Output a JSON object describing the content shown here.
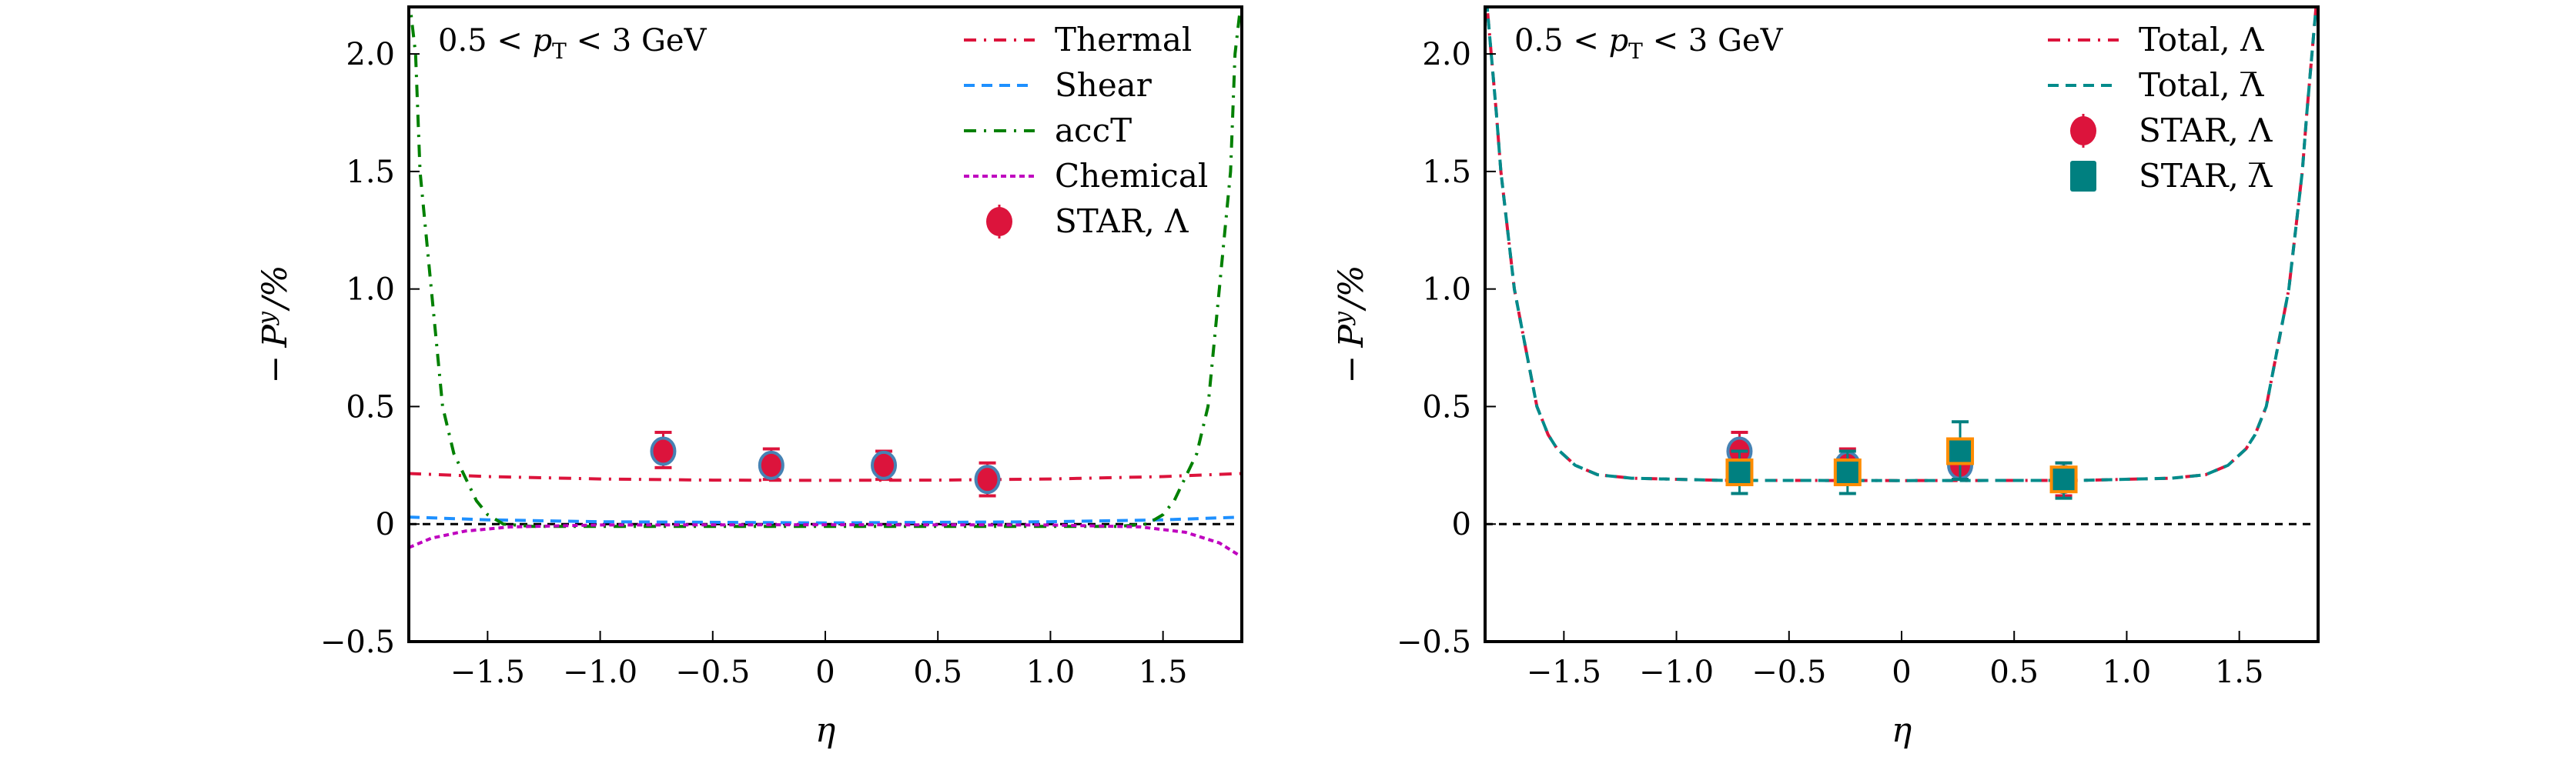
{
  "chart_data": [
    {
      "type": "line",
      "panel": "left",
      "title": "",
      "annotation": "0.5 < pT < 3 GeV",
      "annotation_parts": {
        "pre": "0.5 < ",
        "var": "p",
        "sub": "T",
        "post": " < 3 GeV"
      },
      "xlabel": "η",
      "ylabel": "− P^y / %",
      "ylabel_parts": {
        "minus": "−",
        "var": "P",
        "sup": "y",
        "post": "/%"
      },
      "xlim": [
        -1.85,
        1.85
      ],
      "ylim": [
        -0.5,
        2.2
      ],
      "xticks": [
        -1.5,
        -1.0,
        -0.5,
        0,
        0.5,
        1.0,
        1.5
      ],
      "xtick_labels": [
        "−1.5",
        "−1.0",
        "−0.5",
        "0",
        "0.5",
        "1.0",
        "1.5"
      ],
      "yticks": [
        -0.5,
        0,
        0.5,
        1.0,
        1.5,
        2.0
      ],
      "ytick_labels": [
        "−0.5",
        "0",
        "0.5",
        "1.0",
        "1.5",
        "2.0"
      ],
      "grid": false,
      "legend_position": "top-right",
      "reference_line": {
        "y": 0,
        "color": "#000000",
        "style": "dashed"
      },
      "series": [
        {
          "name": "Thermal",
          "color": "#DC143C",
          "style": "dashdot",
          "x": [
            -1.85,
            -1.5,
            -1.0,
            -0.5,
            0,
            0.5,
            1.0,
            1.5,
            1.85
          ],
          "y": [
            0.215,
            0.202,
            0.192,
            0.187,
            0.186,
            0.187,
            0.192,
            0.202,
            0.215
          ]
        },
        {
          "name": "Shear",
          "color": "#1E90FF",
          "style": "dashed",
          "x": [
            -1.85,
            -1.5,
            -1.0,
            0,
            1.0,
            1.5,
            1.85
          ],
          "y": [
            0.03,
            0.018,
            0.01,
            0.005,
            0.01,
            0.018,
            0.03
          ]
        },
        {
          "name": "accT",
          "color": "#008000",
          "style": "dashdot",
          "x": [
            -1.85,
            -1.82,
            -1.8,
            -1.75,
            -1.7,
            -1.65,
            -1.6,
            -1.55,
            -1.5,
            -1.43,
            -1.3,
            0,
            1.3,
            1.43,
            1.5,
            1.55,
            1.6,
            1.65,
            1.7,
            1.75,
            1.8,
            1.82,
            1.85
          ],
          "y": [
            2.25,
            2.0,
            1.5,
            1.0,
            0.5,
            0.3,
            0.2,
            0.1,
            0.04,
            0.0,
            -0.01,
            -0.01,
            -0.01,
            0.0,
            0.04,
            0.1,
            0.2,
            0.3,
            0.5,
            1.0,
            1.5,
            2.0,
            2.25
          ]
        },
        {
          "name": "Chemical",
          "color": "#BF00BF",
          "style": "dotted",
          "x": [
            -1.85,
            -1.75,
            -1.6,
            -1.4,
            -1.0,
            0,
            1.0,
            1.4,
            1.6,
            1.75,
            1.85
          ],
          "y": [
            -0.1,
            -0.06,
            -0.03,
            -0.012,
            -0.004,
            -0.003,
            -0.004,
            -0.012,
            -0.035,
            -0.08,
            -0.14
          ]
        }
      ],
      "points": [
        {
          "name": "STAR, Λ",
          "marker": "circle",
          "color": "#DC143C",
          "edge": "#4682B4",
          "x": [
            -0.72,
            -0.24,
            0.26,
            0.72
          ],
          "y": [
            0.31,
            0.25,
            0.25,
            0.19
          ],
          "err_high": [
            0.39,
            0.32,
            0.31,
            0.26
          ],
          "err_low": [
            0.24,
            0.19,
            0.19,
            0.12
          ]
        }
      ],
      "legend": [
        {
          "label": "Thermal",
          "kind": "line",
          "series": 0
        },
        {
          "label": "Shear",
          "kind": "line",
          "series": 1
        },
        {
          "label": "accT",
          "kind": "line",
          "series": 2
        },
        {
          "label": "Chemical",
          "kind": "line",
          "series": 3
        },
        {
          "label": "STAR, Λ",
          "kind": "marker",
          "points": 0
        }
      ]
    },
    {
      "type": "line",
      "panel": "right",
      "title": "",
      "annotation": "0.5 < pT < 3 GeV",
      "annotation_parts": {
        "pre": "0.5 < ",
        "var": "p",
        "sub": "T",
        "post": " < 3 GeV"
      },
      "xlabel": "η",
      "ylabel": "− P^y / %",
      "ylabel_parts": {
        "minus": "−",
        "var": "P",
        "sup": "y",
        "post": "/%"
      },
      "xlim": [
        -1.85,
        1.85
      ],
      "ylim": [
        -0.5,
        2.2
      ],
      "xticks": [
        -1.5,
        -1.0,
        -0.5,
        0,
        0.5,
        1.0,
        1.5
      ],
      "xtick_labels": [
        "−1.5",
        "−1.0",
        "−0.5",
        "0",
        "0.5",
        "1.0",
        "1.5"
      ],
      "yticks": [
        -0.5,
        0,
        0.5,
        1.0,
        1.5,
        2.0
      ],
      "ytick_labels": [
        "−0.5",
        "0",
        "0.5",
        "1.0",
        "1.5",
        "2.0"
      ],
      "grid": false,
      "legend_position": "top-right",
      "reference_line": {
        "y": 0,
        "color": "#000000",
        "style": "dashed"
      },
      "series": [
        {
          "name": "Total, Λ",
          "color": "#DC143C",
          "style": "dashdot",
          "x": [
            -1.85,
            -1.8,
            -1.78,
            -1.72,
            -1.67,
            -1.62,
            -1.57,
            -1.53,
            -1.45,
            -1.35,
            -1.2,
            -0.8,
            0,
            0.8,
            1.2,
            1.35,
            1.45,
            1.53,
            1.57,
            1.62,
            1.67,
            1.72,
            1.78,
            1.8,
            1.85
          ],
          "y": [
            2.3,
            1.75,
            1.5,
            1.0,
            0.75,
            0.5,
            0.38,
            0.32,
            0.25,
            0.21,
            0.195,
            0.186,
            0.185,
            0.186,
            0.195,
            0.21,
            0.25,
            0.32,
            0.38,
            0.5,
            0.75,
            1.0,
            1.5,
            1.75,
            2.3
          ]
        },
        {
          "name": "Total, Λ̄",
          "color": "#008B8B",
          "style": "dashed",
          "x": [
            -1.85,
            -1.8,
            -1.78,
            -1.72,
            -1.67,
            -1.62,
            -1.57,
            -1.53,
            -1.45,
            -1.35,
            -1.2,
            -0.8,
            0,
            0.8,
            1.2,
            1.35,
            1.45,
            1.53,
            1.57,
            1.62,
            1.67,
            1.72,
            1.78,
            1.8,
            1.85
          ],
          "y": [
            2.3,
            1.75,
            1.5,
            1.0,
            0.75,
            0.5,
            0.38,
            0.32,
            0.25,
            0.21,
            0.195,
            0.186,
            0.185,
            0.186,
            0.195,
            0.21,
            0.25,
            0.32,
            0.38,
            0.5,
            0.75,
            1.0,
            1.5,
            1.75,
            2.3
          ]
        }
      ],
      "points": [
        {
          "name": "STAR, Λ",
          "marker": "circle",
          "color": "#DC143C",
          "edge": "#4682B4",
          "x": [
            -0.72,
            -0.24,
            0.26,
            0.72
          ],
          "y": [
            0.31,
            0.25,
            0.25,
            0.19
          ],
          "err_high": [
            0.39,
            0.32,
            0.31,
            0.26
          ],
          "err_low": [
            0.24,
            0.19,
            0.19,
            0.12
          ]
        },
        {
          "name": "STAR, Λ̄",
          "marker": "square",
          "color": "#008080",
          "edge": "#FF8C00",
          "x": [
            -0.72,
            -0.24,
            0.26,
            0.72
          ],
          "y": [
            0.22,
            0.22,
            0.31,
            0.19
          ],
          "err_high": [
            0.31,
            0.31,
            0.435,
            0.26
          ],
          "err_low": [
            0.13,
            0.13,
            0.19,
            0.11
          ]
        }
      ],
      "legend": [
        {
          "label": "Total, Λ",
          "kind": "line",
          "series": 0,
          "bar": false
        },
        {
          "label": "Total, Λ",
          "kind": "line",
          "series": 1,
          "bar": true
        },
        {
          "label": "STAR, Λ",
          "kind": "marker",
          "points": 0,
          "bar": false
        },
        {
          "label": "STAR, Λ",
          "kind": "marker",
          "points": 1,
          "bar": true
        }
      ]
    }
  ]
}
